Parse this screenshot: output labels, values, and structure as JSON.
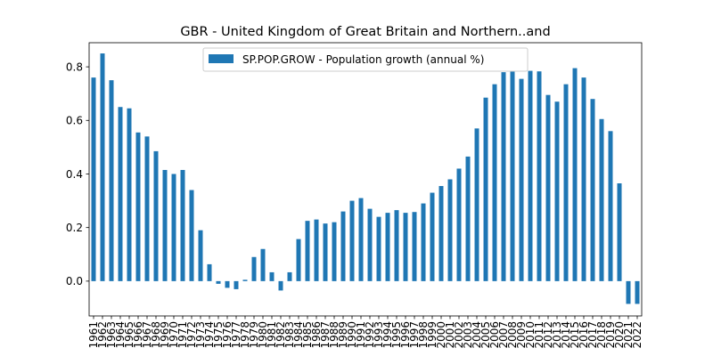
{
  "chart_data": {
    "type": "bar",
    "title": "GBR - United Kingdom of Great Britain and Northern..and",
    "xlabel": "",
    "ylabel": "",
    "ylim": [
      -0.13,
      0.89
    ],
    "yticks": [
      "0.0",
      "0.2",
      "0.4",
      "0.6",
      "0.8"
    ],
    "ytick_values": [
      0.0,
      0.2,
      0.4,
      0.6,
      0.8
    ],
    "legend_position": "top-center",
    "color": "#1f77b4",
    "categories": [
      "1961",
      "1962",
      "1963",
      "1964",
      "1965",
      "1966",
      "1967",
      "1968",
      "1969",
      "1970",
      "1971",
      "1972",
      "1973",
      "1974",
      "1975",
      "1976",
      "1977",
      "1978",
      "1979",
      "1980",
      "1981",
      "1982",
      "1983",
      "1984",
      "1985",
      "1986",
      "1987",
      "1988",
      "1989",
      "1990",
      "1991",
      "1992",
      "1993",
      "1994",
      "1995",
      "1996",
      "1997",
      "1998",
      "1999",
      "2000",
      "2001",
      "2002",
      "2003",
      "2004",
      "2005",
      "2006",
      "2007",
      "2008",
      "2009",
      "2010",
      "2011",
      "2012",
      "2013",
      "2014",
      "2015",
      "2016",
      "2017",
      "2018",
      "2019",
      "2020",
      "2021",
      "2022"
    ],
    "series": [
      {
        "name": "SP.POP.GROW - Population growth (annual %)",
        "values": [
          0.76,
          0.85,
          0.75,
          0.65,
          0.645,
          0.555,
          0.54,
          0.485,
          0.415,
          0.4,
          0.415,
          0.34,
          0.19,
          0.063,
          -0.01,
          -0.025,
          -0.03,
          0.005,
          0.09,
          0.12,
          0.033,
          -0.035,
          0.033,
          0.157,
          0.225,
          0.23,
          0.215,
          0.22,
          0.26,
          0.3,
          0.31,
          0.27,
          0.24,
          0.255,
          0.265,
          0.255,
          0.258,
          0.29,
          0.33,
          0.355,
          0.38,
          0.42,
          0.465,
          0.57,
          0.685,
          0.735,
          0.78,
          0.785,
          0.755,
          0.785,
          0.783,
          0.695,
          0.67,
          0.735,
          0.795,
          0.76,
          0.68,
          0.605,
          0.56,
          0.365,
          -0.085,
          -0.085
        ]
      }
    ]
  }
}
